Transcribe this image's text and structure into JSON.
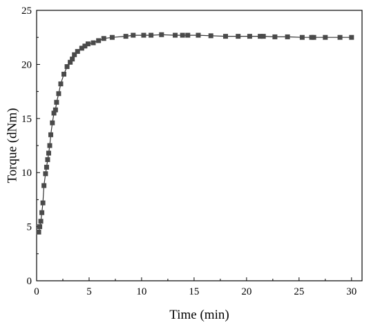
{
  "chart_data": {
    "type": "line",
    "xlabel": "Time (min)",
    "ylabel": "Torque (dNm)",
    "xlim": [
      0,
      31
    ],
    "ylim": [
      0,
      25
    ],
    "xticks": [
      0,
      5,
      10,
      15,
      20,
      25,
      30
    ],
    "yticks": [
      0,
      5,
      10,
      15,
      20,
      25
    ],
    "grid": false,
    "legend": "none",
    "marker": "square",
    "color": "#4a4a4a",
    "series": [
      {
        "x": [
          0.2,
          0.3,
          0.4,
          0.5,
          0.6,
          0.7,
          0.85,
          0.95,
          1.05,
          1.15,
          1.25,
          1.35,
          1.5,
          1.65,
          1.8,
          1.9,
          2.1,
          2.3,
          2.6,
          2.9,
          3.2,
          3.4,
          3.6,
          3.9,
          4.3,
          4.6,
          4.9,
          5.4,
          5.9,
          6.4,
          7.2,
          8.5,
          9.2,
          10.2,
          10.9,
          11.9,
          13.2,
          13.9,
          14.4,
          15.4,
          16.6,
          18.0,
          19.2,
          20.3,
          21.3,
          21.6,
          22.7,
          23.9,
          25.3,
          26.2,
          26.4,
          27.5,
          28.9,
          30.0
        ],
        "values": [
          4.5,
          5.0,
          5.5,
          6.3,
          7.2,
          8.8,
          9.9,
          10.5,
          11.2,
          11.8,
          12.5,
          13.5,
          14.6,
          15.5,
          15.8,
          16.5,
          17.3,
          18.2,
          19.1,
          19.8,
          20.2,
          20.5,
          20.9,
          21.2,
          21.5,
          21.7,
          21.9,
          22.0,
          22.2,
          22.4,
          22.5,
          22.6,
          22.7,
          22.7,
          22.7,
          22.75,
          22.7,
          22.7,
          22.7,
          22.7,
          22.65,
          22.6,
          22.6,
          22.6,
          22.6,
          22.6,
          22.55,
          22.55,
          22.5,
          22.5,
          22.5,
          22.5,
          22.5,
          22.5
        ]
      }
    ]
  }
}
